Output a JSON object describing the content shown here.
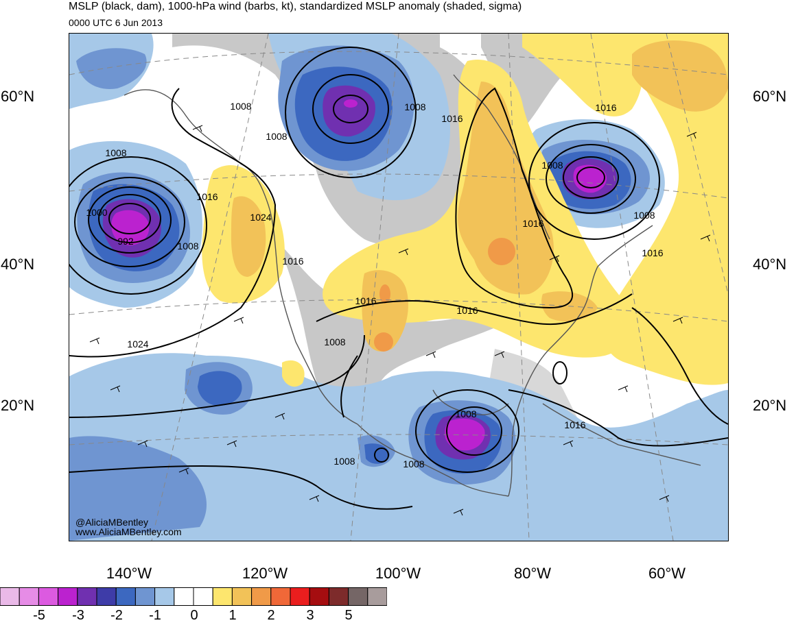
{
  "header": {
    "title": "MSLP (black, dam), 1000-hPa wind (barbs, kt), standardized MSLP anomaly (shaded, sigma)",
    "subtitle": "0000 UTC 6 Jun 2013"
  },
  "credit": {
    "line1": "@AliciaMBentley",
    "line2": "www.AliciaMBentley.com"
  },
  "axes": {
    "lat_labels": [
      "60°N",
      "40°N",
      "20°N"
    ],
    "lon_labels": [
      "140°W",
      "120°W",
      "100°W",
      "80°W",
      "60°W"
    ]
  },
  "contour_labels": [
    "1008",
    "1008",
    "1008",
    "1016",
    "1008",
    "1016",
    "1000",
    "992",
    "1008",
    "1024",
    "1016",
    "1016",
    "1008",
    "1016",
    "1016",
    "1024",
    "1008",
    "1016",
    "1016",
    "1008",
    "1016",
    "1008",
    "1008",
    "1008"
  ],
  "colorbar": {
    "colors": [
      "#eab9e8",
      "#e68ce6",
      "#dc5ae0",
      "#bb22cf",
      "#7030b0",
      "#3e3ca8",
      "#3c68c0",
      "#6f95d1",
      "#a6c8e8",
      "#ffffff",
      "#ffffff",
      "#fde66e",
      "#f2c258",
      "#f09a48",
      "#f06838",
      "#ea1e1e",
      "#a50d10",
      "#7d2b2b",
      "#756666",
      "#a89c9c"
    ],
    "labels": [
      "-5",
      "-3",
      "-2",
      "-1",
      "0",
      "1",
      "2",
      "3",
      "5"
    ]
  }
}
